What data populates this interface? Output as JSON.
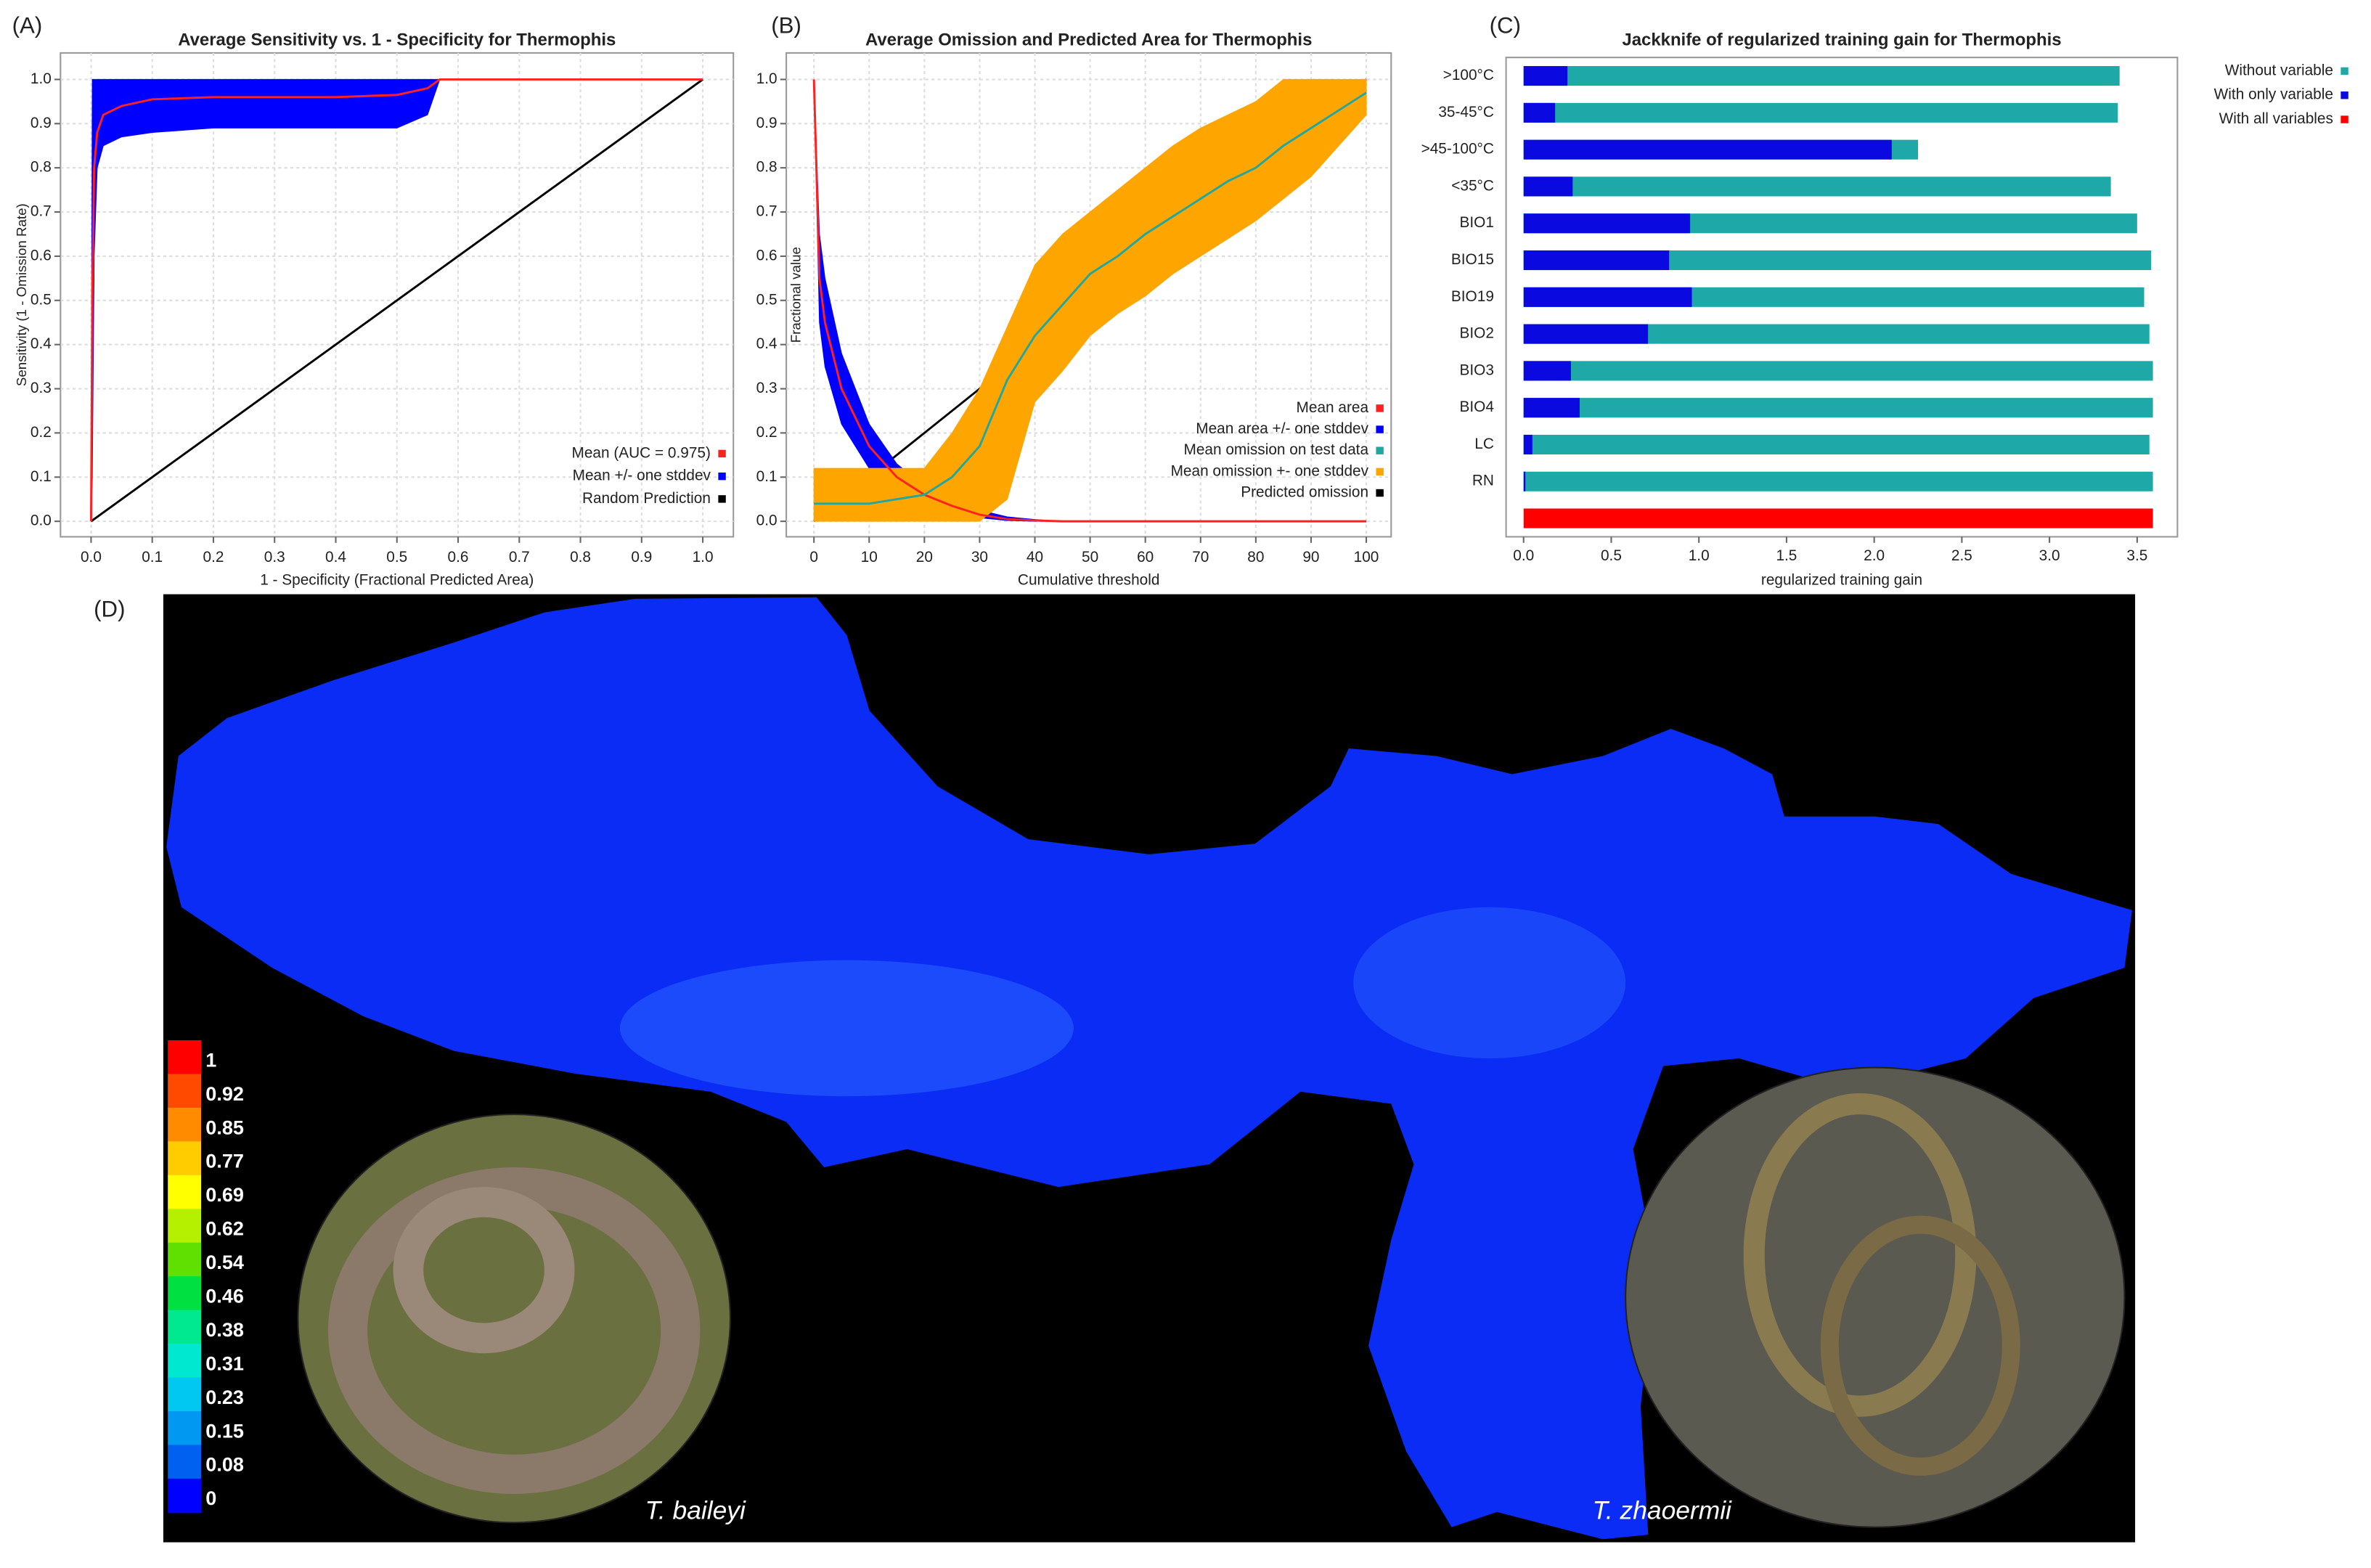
{
  "chart_data": [
    {
      "type": "line",
      "panel_label": "(A)",
      "title": "Average Sensitivity vs. 1 - Specificity for Thermophis",
      "xlabel": "1 - Specificity (Fractional Predicted Area)",
      "ylabel": "Sensitivity (1 - Omission Rate)",
      "xlim": [
        -0.05,
        1.05
      ],
      "ylim": [
        -0.035,
        1.06
      ],
      "xticks": [
        {
          "value": 0,
          "label": "0.0"
        },
        0.1,
        0.2,
        0.3,
        0.4,
        0.5,
        0.6,
        0.7,
        0.8,
        0.9,
        {
          "value": 1,
          "label": "1.0"
        }
      ],
      "yticks": [
        {
          "value": 0,
          "label": "0.0"
        },
        0.1,
        0.2,
        0.3,
        0.4,
        0.5,
        0.6,
        0.7,
        0.8,
        0.9,
        {
          "value": 1,
          "label": "1.0"
        }
      ],
      "grid": true,
      "legend": "lower right",
      "x": [
        0,
        0.002,
        0.005,
        0.01,
        0.02,
        0.05,
        0.1,
        0.2,
        0.3,
        0.4,
        0.5,
        0.55,
        0.57,
        0.6,
        1
      ],
      "series": [
        {
          "name": "Mean (AUC = 0.975)",
          "color": "#ff2020",
          "values": [
            0,
            0.5,
            0.8,
            0.88,
            0.92,
            0.94,
            0.955,
            0.96,
            0.96,
            0.96,
            0.965,
            0.98,
            1,
            1,
            1
          ]
        },
        {
          "name": "Mean +/- one stddev",
          "color": "#0000ff",
          "upper": [
            0,
            1,
            1,
            1,
            1,
            1,
            1,
            1,
            1,
            1,
            1,
            1,
            1,
            1,
            1
          ],
          "lower": [
            0,
            0.1,
            0.6,
            0.8,
            0.85,
            0.87,
            0.88,
            0.89,
            0.89,
            0.89,
            0.89,
            0.92,
            1,
            1,
            1
          ]
        },
        {
          "name": "Random Prediction",
          "color": "#000000",
          "x": [
            0,
            1
          ],
          "values": [
            0,
            1
          ]
        }
      ]
    },
    {
      "type": "line",
      "panel_label": "(B)",
      "title": "Average Omission and Predicted Area for Thermophis",
      "xlabel": "Cumulative threshold",
      "ylabel": "Fractional value",
      "xlim": [
        -5,
        104.5
      ],
      "ylim": [
        -0.035,
        1.06
      ],
      "xticks": [
        0,
        10,
        20,
        30,
        40,
        50,
        60,
        70,
        80,
        90,
        100
      ],
      "yticks": [
        {
          "value": 0,
          "label": "0.0"
        },
        0.1,
        0.2,
        0.3,
        0.4,
        0.5,
        0.6,
        0.7,
        0.8,
        0.9,
        {
          "value": 1,
          "label": "1.0"
        }
      ],
      "grid": true,
      "legend": "lower right",
      "x": [
        0,
        1,
        2,
        5,
        10,
        15,
        20,
        25,
        30,
        35,
        40,
        45,
        50,
        55,
        60,
        65,
        70,
        75,
        80,
        85,
        90,
        95,
        100
      ],
      "series": [
        {
          "name": "Mean area",
          "color": "#ff2020",
          "values": [
            1,
            0.55,
            0.45,
            0.3,
            0.17,
            0.1,
            0.06,
            0.035,
            0.015,
            0.005,
            0.002,
            0,
            0,
            0,
            0,
            0,
            0,
            0,
            0,
            0,
            0,
            0,
            0
          ]
        },
        {
          "name": "Mean area +/- one stddev",
          "color": "#0000ff",
          "upper": [
            1,
            0.65,
            0.55,
            0.38,
            0.22,
            0.13,
            0.08,
            0.05,
            0.025,
            0.01,
            0.004,
            0,
            0,
            0,
            0,
            0,
            0,
            0,
            0,
            0,
            0,
            0,
            0
          ],
          "lower": [
            1,
            0.45,
            0.35,
            0.22,
            0.12,
            0.07,
            0.04,
            0.02,
            0.008,
            0.002,
            0,
            0,
            0,
            0,
            0,
            0,
            0,
            0,
            0,
            0,
            0,
            0,
            0
          ]
        },
        {
          "name": "Mean omission on test data",
          "color": "#20a8a0",
          "values": [
            0.04,
            0.04,
            0.04,
            0.04,
            0.04,
            0.05,
            0.06,
            0.1,
            0.17,
            0.32,
            0.42,
            0.49,
            0.56,
            0.6,
            0.65,
            0.69,
            0.73,
            0.77,
            0.8,
            0.85,
            0.89,
            0.93,
            0.97
          ]
        },
        {
          "name": "Mean omission +- one stddev",
          "color": "#ffa500",
          "upper": [
            0.12,
            0.12,
            0.12,
            0.12,
            0.12,
            0.12,
            0.12,
            0.2,
            0.3,
            0.44,
            0.58,
            0.65,
            0.7,
            0.75,
            0.8,
            0.85,
            0.89,
            0.92,
            0.95,
            1,
            1,
            1,
            1
          ],
          "lower": [
            0,
            0,
            0,
            0,
            0,
            0,
            0,
            0,
            0,
            0.05,
            0.27,
            0.34,
            0.42,
            0.47,
            0.51,
            0.56,
            0.6,
            0.64,
            0.68,
            0.73,
            0.78,
            0.85,
            0.92
          ]
        },
        {
          "name": "Predicted omission",
          "color": "#000000",
          "x": [
            0,
            100
          ],
          "values": [
            0,
            1
          ]
        }
      ]
    },
    {
      "type": "hbar",
      "panel_label": "(C)",
      "title": "Jackknife of regularized training gain for Thermophis",
      "xlabel": "regularized training gain",
      "xlim": [
        -0.1,
        3.73
      ],
      "xticks": [
        {
          "value": 0,
          "label": "0.0"
        },
        0.5,
        {
          "value": 1,
          "label": "1.0"
        },
        1.5,
        {
          "value": 2,
          "label": "2.0"
        },
        2.5,
        {
          "value": 3,
          "label": "3.0"
        },
        3.5
      ],
      "grid": false,
      "legend": "upper right outside",
      "categories": [
        ">100°C",
        "35-45°C",
        ">45-100°C",
        "<35°C",
        "BIO1",
        "BIO15",
        "BIO19",
        "BIO2",
        "BIO3",
        "BIO4",
        "LC",
        "RN",
        null
      ],
      "series": [
        {
          "name": "Without variable",
          "color": "#1fa8a8",
          "values": [
            3.4,
            3.39,
            2.25,
            3.35,
            3.5,
            3.58,
            3.54,
            3.57,
            3.59,
            3.59,
            3.57,
            3.59,
            null
          ]
        },
        {
          "name": "With only variable",
          "color": "#0a0ae0",
          "values": [
            0.25,
            0.18,
            2.1,
            0.28,
            0.95,
            0.83,
            0.96,
            0.71,
            0.27,
            0.32,
            0.05,
            0.01,
            null
          ]
        },
        {
          "name": "With all variables",
          "color": "#ff0000",
          "values": [
            null,
            null,
            null,
            null,
            null,
            null,
            null,
            null,
            null,
            null,
            null,
            null,
            3.59
          ]
        }
      ]
    }
  ],
  "map": {
    "panel_label": "(D)",
    "legend_ticks": [
      1,
      0.92,
      0.85,
      0.77,
      0.69,
      0.62,
      0.54,
      0.46,
      0.38,
      0.31,
      0.23,
      0.15,
      0.08,
      0
    ],
    "legend_colors": [
      "#ff0000",
      "#ff4a00",
      "#ff8c00",
      "#ffcc00",
      "#ffff00",
      "#b4f000",
      "#60e000",
      "#00e040",
      "#00e890",
      "#00e8d0",
      "#00c8f0",
      "#0098f0",
      "#0060f0",
      "#0000ff"
    ],
    "species": [
      "T. baileyi",
      "T. zhaoermii"
    ]
  }
}
